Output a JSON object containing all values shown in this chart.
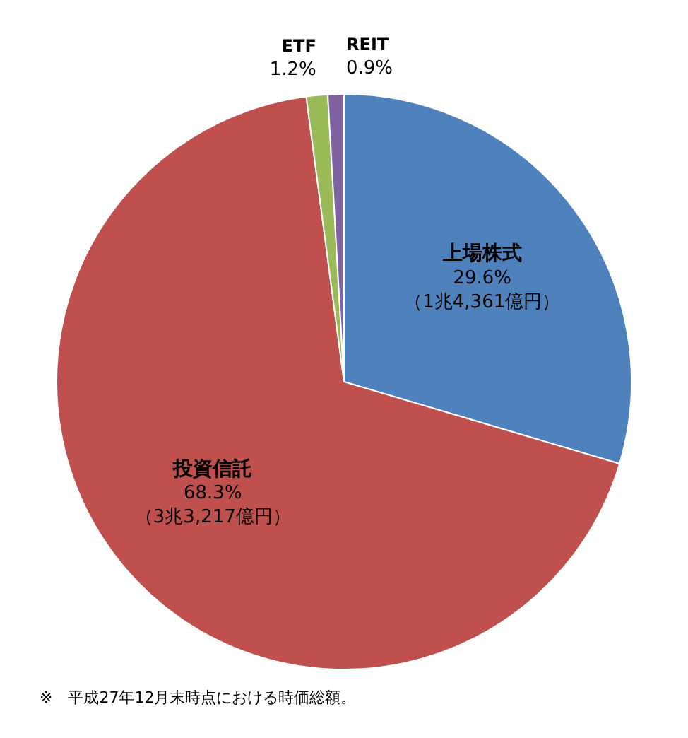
{
  "chart_data": {
    "type": "pie",
    "categories": [
      "上場株式",
      "投資信託",
      "ETF",
      "REIT"
    ],
    "values": [
      29.6,
      68.3,
      1.2,
      0.9
    ],
    "colors": [
      "#4f81bd",
      "#c0504d",
      "#9bbb59",
      "#8064a2"
    ],
    "value_labels": [
      "29.6%\n（1兆4,361億円）",
      "68.3%\n（3兆3,217億円）",
      "1.2%",
      "0.9%"
    ],
    "legend": false,
    "annotations": [
      "※　平成27年12月末時点における時価総額。"
    ]
  }
}
